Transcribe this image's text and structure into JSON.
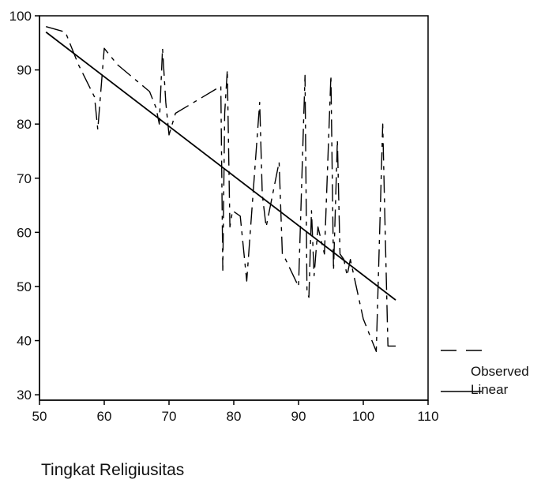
{
  "chart_data": {
    "type": "line",
    "title": "",
    "xlabel": "Tingkat Religiusitas",
    "ylabel": "",
    "xlim": [
      50,
      110
    ],
    "ylim": [
      29,
      100
    ],
    "x_ticks": [
      "50",
      "60",
      "70",
      "80",
      "90",
      "100",
      "110"
    ],
    "y_ticks": [
      "30",
      "40",
      "50",
      "60",
      "70",
      "80",
      "90",
      "100"
    ],
    "x_tick_values": [
      50,
      60,
      70,
      80,
      90,
      100,
      110
    ],
    "y_tick_values": [
      30,
      40,
      50,
      60,
      70,
      80,
      90,
      100
    ],
    "grid": false,
    "legend_position": "right",
    "series": [
      {
        "name": "Observed",
        "style": "dashed",
        "x": [
          51,
          54,
          56,
          58.5,
          59,
          60,
          62,
          65,
          67,
          68,
          68.5,
          69,
          69.5,
          70,
          71,
          78,
          78.3,
          78.6,
          79,
          79.4,
          79.8,
          81,
          82,
          84,
          84.4,
          85,
          87,
          87.5,
          88,
          90,
          91,
          91.3,
          91.6,
          92,
          92.4,
          93,
          94,
          95,
          95.4,
          96,
          96.4,
          97,
          97.5,
          98,
          100,
          102,
          103,
          103.4,
          103.8,
          104,
          105
        ],
        "y": [
          98,
          97,
          91,
          85,
          79,
          94,
          91,
          88,
          86,
          83,
          80,
          94,
          84,
          78,
          82,
          87,
          53,
          82,
          90,
          61,
          64,
          63,
          51,
          84,
          67,
          61,
          73,
          56,
          55,
          50,
          89,
          49,
          48,
          64,
          52,
          61,
          56,
          89,
          53,
          77,
          56,
          55,
          52,
          55,
          44,
          38,
          80,
          59,
          39,
          39,
          39
        ]
      },
      {
        "name": "Linear",
        "style": "solid",
        "x": [
          51,
          105
        ],
        "y": [
          97,
          47.5
        ]
      }
    ]
  }
}
